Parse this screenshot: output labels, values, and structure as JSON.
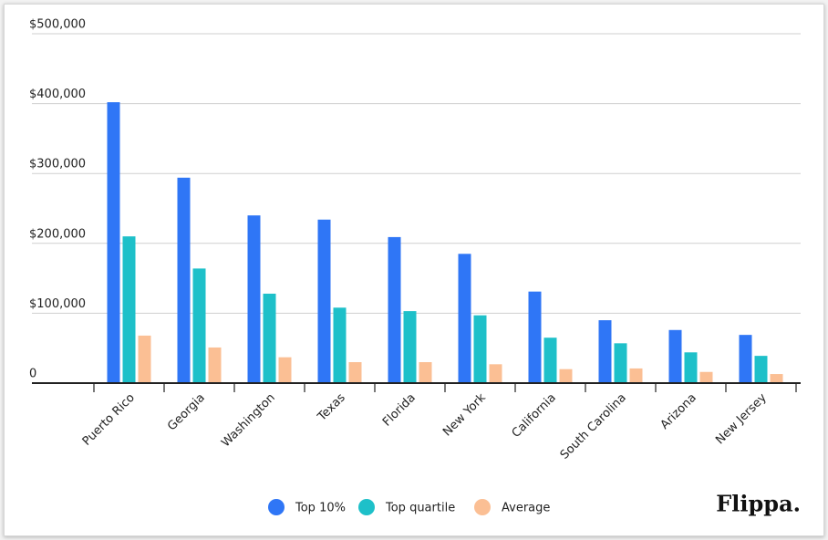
{
  "chart_data": {
    "type": "bar",
    "brand": "Flippa.",
    "categories": [
      "Puerto Rico",
      "Georgia",
      "Washington",
      "Texas",
      "Florida",
      "New York",
      "California",
      "South Carolina",
      "Arizona",
      "New Jersey"
    ],
    "series": [
      {
        "name": "Top 10%",
        "color": "#2f76f6",
        "values": [
          402000,
          294000,
          240000,
          234000,
          209000,
          185000,
          131000,
          90000,
          76000,
          69000
        ]
      },
      {
        "name": "Top quartile",
        "color": "#1ec0c9",
        "values": [
          210000,
          164000,
          128000,
          108000,
          103000,
          97000,
          65000,
          57000,
          44000,
          39000
        ]
      },
      {
        "name": "Average",
        "color": "#fbbf94",
        "values": [
          68000,
          51000,
          37000,
          30000,
          30000,
          27000,
          20000,
          21000,
          16000,
          13000
        ]
      }
    ],
    "ylim": [
      0,
      500000
    ],
    "yticks": [
      0,
      {
        "value": 100000,
        "label": "$100,000"
      },
      {
        "value": 200000,
        "label": "$200,000"
      },
      {
        "value": 300000,
        "label": "$300,000"
      },
      {
        "value": 400000,
        "label": "$400,000"
      },
      {
        "value": 500000,
        "label": "$500,000"
      }
    ],
    "grid": true
  }
}
